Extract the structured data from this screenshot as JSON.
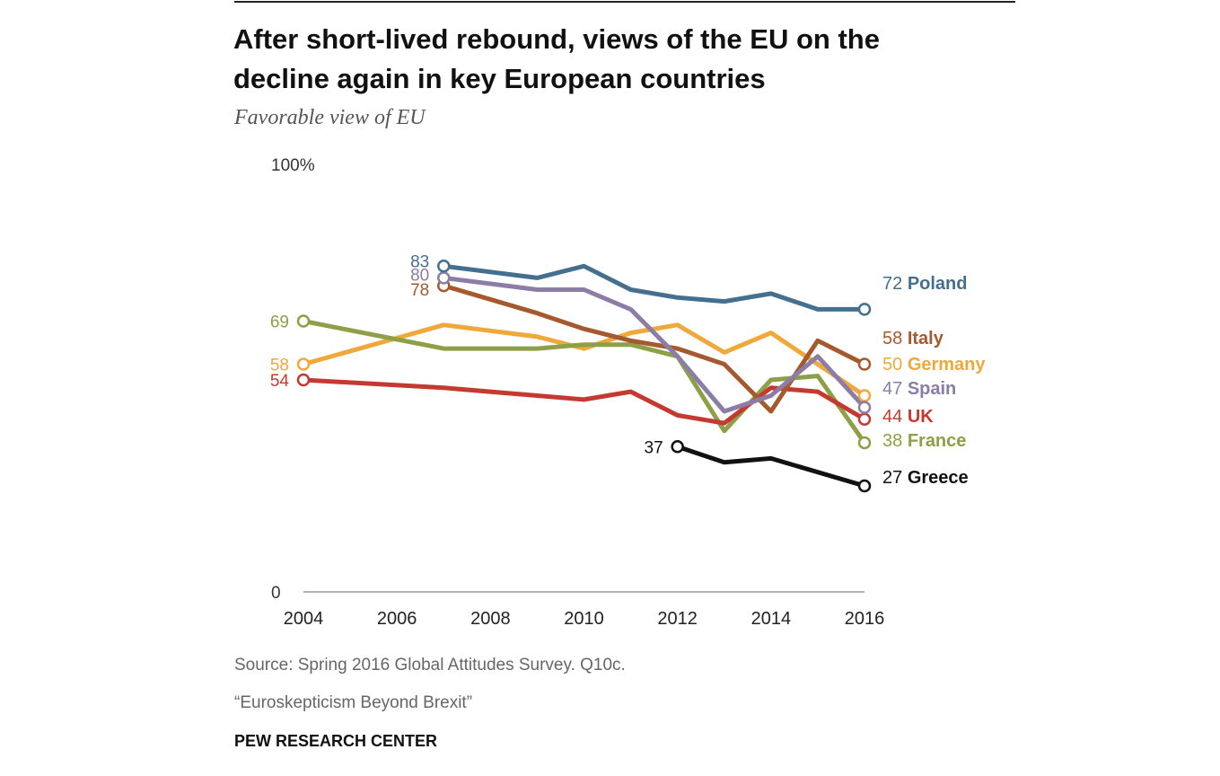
{
  "title": "After short-lived rebound, views of the EU on the decline again in key European countries",
  "subtitle": "Favorable view of EU",
  "source": "Source: Spring 2016 Global Attitudes Survey. Q10c.",
  "report": "“Euroskepticism Beyond Brexit”",
  "brand": "PEW RESEARCH CENTER",
  "chart_data": {
    "type": "line",
    "title": "Favorable view of EU",
    "xlim": [
      2004,
      2016
    ],
    "ylim": [
      0,
      100
    ],
    "x_ticks": [
      "2004",
      "2006",
      "2008",
      "2010",
      "2012",
      "2014",
      "2016"
    ],
    "y_ticks": [
      "0",
      "100%"
    ],
    "series": [
      {
        "name": "Poland",
        "color": "#44708f",
        "x": [
          2007,
          2009,
          2010,
          2011,
          2012,
          2013,
          2014,
          2015,
          2016
        ],
        "values": [
          83,
          80,
          83,
          77,
          75,
          74,
          76,
          72,
          72
        ],
        "start_label": "83",
        "end_label": "72",
        "legend_label": "Poland"
      },
      {
        "name": "Spain",
        "color": "#8c7da6",
        "x": [
          2007,
          2009,
          2010,
          2011,
          2012,
          2013,
          2014,
          2015,
          2016
        ],
        "values": [
          80,
          77,
          77,
          72,
          60,
          46,
          50,
          60,
          47
        ],
        "start_label": "80",
        "end_label": "47",
        "legend_label": "Spain"
      },
      {
        "name": "Italy",
        "color": "#a5592d",
        "x": [
          2007,
          2009,
          2010,
          2011,
          2012,
          2013,
          2014,
          2015,
          2016
        ],
        "values": [
          78,
          71,
          67,
          64,
          62,
          58,
          46,
          64,
          58
        ],
        "start_label": "78",
        "end_label": "58",
        "legend_label": "Italy"
      },
      {
        "name": "France",
        "color": "#8ea047",
        "x": [
          2004,
          2007,
          2009,
          2010,
          2011,
          2012,
          2013,
          2014,
          2015,
          2016
        ],
        "values": [
          69,
          62,
          62,
          63,
          63,
          60,
          41,
          54,
          55,
          38
        ],
        "start_label": "69",
        "end_label": "38",
        "legend_label": "France"
      },
      {
        "name": "Germany",
        "color": "#f0a83b",
        "x": [
          2004,
          2007,
          2009,
          2010,
          2011,
          2012,
          2013,
          2014,
          2015,
          2016
        ],
        "values": [
          58,
          68,
          65,
          62,
          66,
          68,
          61,
          66,
          58,
          50
        ],
        "start_label": "58",
        "end_label": "50",
        "legend_label": "Germany"
      },
      {
        "name": "UK",
        "color": "#c53a30",
        "x": [
          2004,
          2007,
          2009,
          2010,
          2011,
          2012,
          2013,
          2014,
          2015,
          2016
        ],
        "values": [
          54,
          52,
          50,
          49,
          51,
          45,
          43,
          52,
          51,
          44
        ],
        "start_label": "54",
        "end_label": "44",
        "legend_label": "UK"
      },
      {
        "name": "Greece",
        "color": "#111111",
        "x": [
          2012,
          2013,
          2014,
          2016
        ],
        "values": [
          37,
          33,
          34,
          27
        ],
        "start_label": "37",
        "end_label": "27",
        "legend_label": "Greece"
      }
    ]
  }
}
